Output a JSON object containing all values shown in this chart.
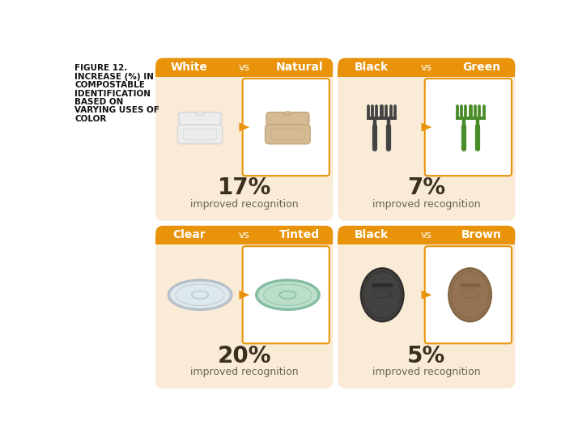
{
  "title_lines": [
    "FIGURE 12.",
    "INCREASE (%) IN",
    "COMPOSTABLE",
    "IDENTIFICATION",
    "BASED ON",
    "VARYING USES OF",
    "COLOR"
  ],
  "background_color": "#ffffff",
  "panel_bg_color": "#f5deb3",
  "panel_bg_color2": "#faebd7",
  "header_bg_color": "#e8930a",
  "right_box_border": "#e8930a",
  "panels": [
    {
      "left_label": "White",
      "right_label": "Natural",
      "vs_text": "vs",
      "pct": "17%",
      "sub": "improved recognition",
      "left_color": "#d8d8d8",
      "right_color": "#c8aa80",
      "left_fill": "#ececec",
      "right_fill": "#d4bb94",
      "shape": "clamshell",
      "col": 0,
      "row": 0
    },
    {
      "left_label": "Black",
      "right_label": "Green",
      "vs_text": "vs",
      "pct": "7%",
      "sub": "improved recognition",
      "left_color": "#444444",
      "right_color": "#4a8c2a",
      "left_fill": "#444444",
      "right_fill": "#4a8c2a",
      "shape": "fork",
      "col": 1,
      "row": 0
    },
    {
      "left_label": "Clear",
      "right_label": "Tinted",
      "vs_text": "vs",
      "pct": "20%",
      "sub": "improved recognition",
      "left_color": "#b0bcc8",
      "right_color": "#7ab89a",
      "left_fill": "#dde8f0",
      "right_fill": "#b8ddc8",
      "shape": "cup_lid",
      "col": 0,
      "row": 1
    },
    {
      "left_label": "Black",
      "right_label": "Brown",
      "vs_text": "vs",
      "pct": "5%",
      "sub": "improved recognition",
      "left_color": "#222222",
      "right_color": "#7a5c38",
      "left_fill": "#333333",
      "right_fill": "#8b6644",
      "shape": "coffee_lid",
      "col": 1,
      "row": 1
    }
  ],
  "arrow_color": "#e8930a",
  "pct_color": "#3a3020",
  "sub_color": "#666655",
  "pct_fontsize": 20,
  "sub_fontsize": 9,
  "header_fontsize": 10,
  "title_fontsize": 7.5
}
